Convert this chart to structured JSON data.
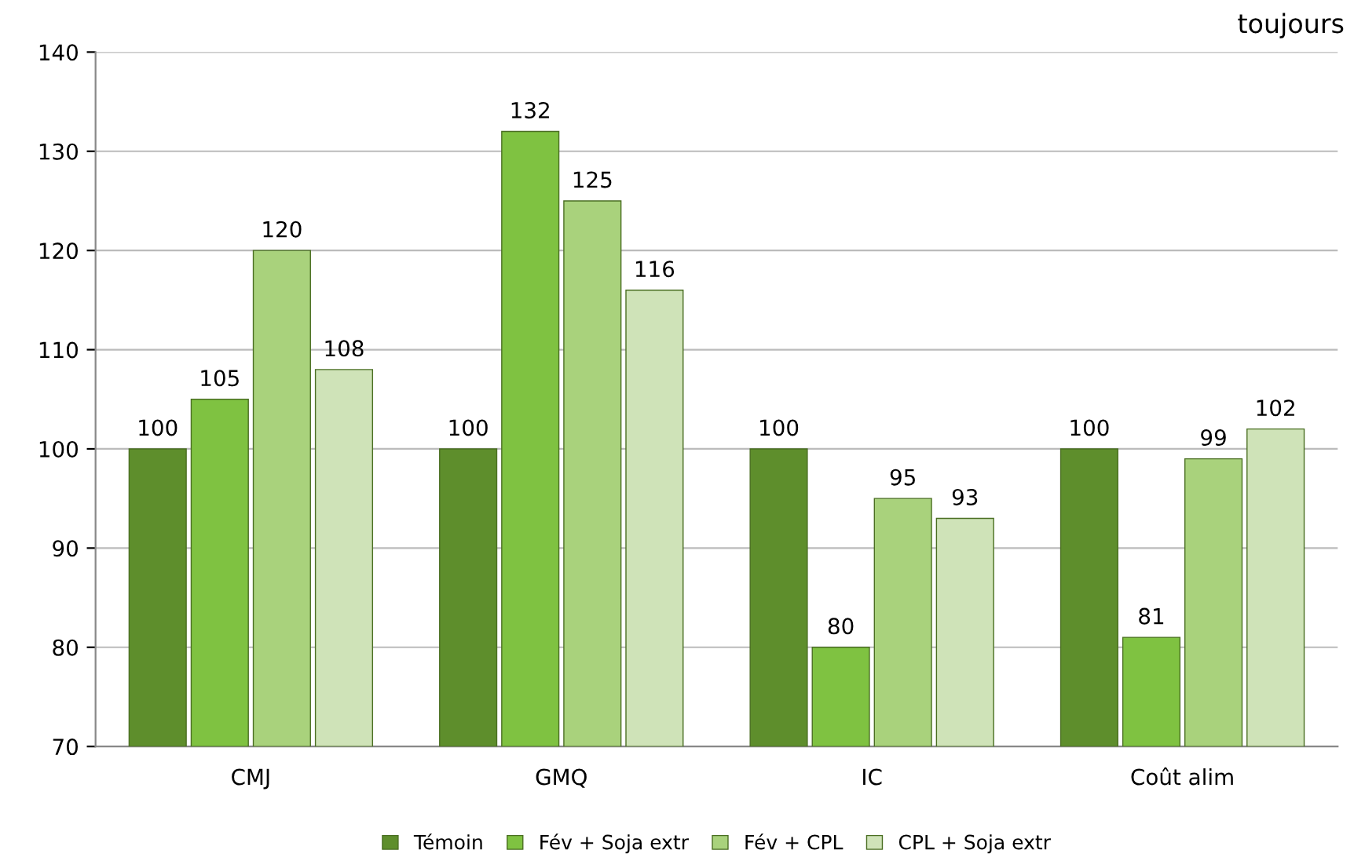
{
  "chart_data": {
    "type": "bar",
    "categories": [
      "CMJ",
      "GMQ",
      "IC",
      "Coût alim"
    ],
    "series": [
      {
        "name": "Témoin",
        "color": "#5e8e2c",
        "values": [
          100,
          100,
          100,
          100
        ]
      },
      {
        "name": "Fév + Soja extr",
        "color": "#7fc241",
        "values": [
          105,
          132,
          80,
          81
        ]
      },
      {
        "name": "Fév + CPL",
        "color": "#a9d27c",
        "values": [
          120,
          125,
          95,
          99
        ]
      },
      {
        "name": "CPL + Soja extr",
        "color": "#cfe3b8",
        "values": [
          108,
          116,
          93,
          102
        ]
      }
    ],
    "ylim": [
      70,
      140
    ],
    "yticks": [
      70,
      80,
      90,
      100,
      110,
      120,
      130,
      140
    ],
    "grid": "y",
    "legend": "bottom",
    "data_labels": true,
    "annotations": [
      "toujours"
    ]
  }
}
